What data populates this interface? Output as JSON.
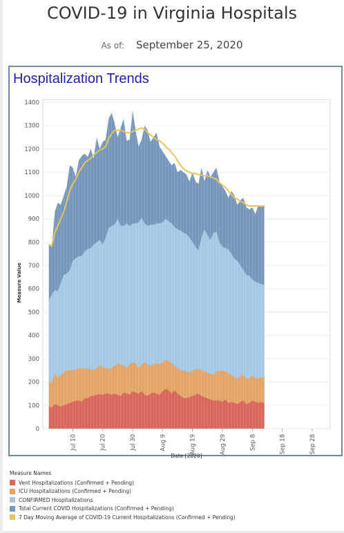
{
  "header": {
    "title": "COVID-19 in Virginia Hospitals",
    "asof_label": "As of:",
    "asof_date": "September 25, 2020"
  },
  "panel": {
    "title": "Hospitalization Trends"
  },
  "chart_data": {
    "type": "area",
    "xlabel": "Date [2020]",
    "ylabel": "Measure Value",
    "ylim": [
      0,
      1400
    ],
    "yticks": [
      "0",
      "100",
      "200",
      "300",
      "400",
      "500",
      "600",
      "700",
      "800",
      "900",
      "1000",
      "1100",
      "1200",
      "1300",
      "1400"
    ],
    "xticks": [
      "Jul 10",
      "Jul 20",
      "Jul 30",
      "Aug 9",
      "Aug 19",
      "Aug 29",
      "Sep 8",
      "Sep 18",
      "Sep 28"
    ],
    "xtick_days": [
      10,
      20,
      30,
      40,
      50,
      60,
      70,
      80,
      90
    ],
    "x_start_day": 2,
    "grid": true,
    "legend_position": "bottom-left",
    "series": [
      {
        "name": "Vent Hospitalizations (Confirmed + Pending)",
        "color": "#d9665a",
        "values": [
          95,
          90,
          105,
          100,
          95,
          100,
          105,
          110,
          115,
          120,
          120,
          115,
          130,
          130,
          140,
          140,
          145,
          148,
          145,
          150,
          150,
          145,
          150,
          145,
          140,
          155,
          150,
          145,
          160,
          155,
          150,
          160,
          145,
          140,
          150,
          155,
          150,
          145,
          160,
          170,
          165,
          150,
          165,
          150,
          140,
          130,
          130,
          135,
          140,
          145,
          150,
          140,
          135,
          130,
          125,
          120,
          120,
          120,
          115,
          125,
          110,
          115,
          110,
          105,
          115,
          120,
          105,
          110,
          120,
          115,
          110,
          115,
          110
        ]
      },
      {
        "name": "ICU Hospitalizations (Confirmed + Pending)",
        "color": "#e3a468",
        "values": [
          205,
          195,
          235,
          220,
          230,
          240,
          250,
          250,
          250,
          255,
          260,
          260,
          255,
          260,
          255,
          250,
          260,
          270,
          265,
          260,
          255,
          260,
          270,
          280,
          275,
          270,
          260,
          275,
          285,
          280,
          260,
          275,
          285,
          275,
          270,
          275,
          280,
          275,
          285,
          295,
          290,
          280,
          270,
          260,
          250,
          250,
          245,
          240,
          250,
          255,
          255,
          250,
          245,
          240,
          235,
          230,
          245,
          245,
          250,
          245,
          240,
          230,
          220,
          215,
          225,
          230,
          215,
          215,
          230,
          215,
          215,
          220,
          220
        ]
      },
      {
        "name": "CONFIRMED Hospitalizations",
        "color": "#a5c8e4",
        "values": [
          550,
          575,
          595,
          590,
          625,
          660,
          665,
          680,
          720,
          730,
          740,
          740,
          760,
          770,
          775,
          790,
          800,
          810,
          790,
          820,
          860,
          870,
          875,
          900,
          870,
          870,
          880,
          870,
          880,
          880,
          885,
          905,
          880,
          870,
          875,
          875,
          880,
          880,
          885,
          900,
          890,
          880,
          865,
          855,
          850,
          840,
          835,
          820,
          800,
          780,
          765,
          820,
          855,
          830,
          810,
          840,
          845,
          800,
          780,
          775,
          770,
          750,
          730,
          720,
          700,
          680,
          660,
          655,
          640,
          630,
          625,
          620,
          615
        ]
      },
      {
        "name": "Total Current COVID Hospitalizations (Confirmed + Pending)",
        "color": "#7697bb",
        "values": [
          795,
          780,
          930,
          970,
          960,
          1000,
          1040,
          1130,
          1120,
          1080,
          1150,
          1170,
          1180,
          1165,
          1200,
          1160,
          1250,
          1200,
          1230,
          1240,
          1330,
          1355,
          1310,
          1250,
          1290,
          1330,
          1235,
          1240,
          1365,
          1280,
          1210,
          1240,
          1300,
          1280,
          1230,
          1250,
          1270,
          1210,
          1190,
          1170,
          1150,
          1130,
          1140,
          1100,
          1110,
          1100,
          1090,
          1060,
          1100,
          1060,
          1050,
          1120,
          1060,
          1110,
          1080,
          1100,
          1120,
          1060,
          1040,
          1020,
          990,
          1020,
          1000,
          960,
          980,
          990,
          950,
          940,
          950,
          920,
          960,
          950,
          960
        ]
      },
      {
        "name": "7 Day Moving Average of COVID-19 Current Hospitalizations (Confirmed + Pending)",
        "color": "#e6c55a",
        "values": [
          790,
          785,
          840,
          870,
          900,
          930,
          975,
          1020,
          1050,
          1070,
          1100,
          1120,
          1140,
          1150,
          1160,
          1175,
          1185,
          1195,
          1200,
          1210,
          1245,
          1265,
          1280,
          1280,
          1280,
          1275,
          1270,
          1270,
          1275,
          1280,
          1285,
          1290,
          1285,
          1270,
          1260,
          1250,
          1240,
          1235,
          1225,
          1210,
          1200,
          1185,
          1170,
          1150,
          1130,
          1115,
          1105,
          1100,
          1095,
          1095,
          1090,
          1088,
          1085,
          1085,
          1080,
          1075,
          1070,
          1055,
          1045,
          1035,
          1020,
          1005,
          990,
          985,
          975,
          970,
          960,
          955,
          955,
          955,
          955,
          955,
          955
        ]
      }
    ]
  }
}
